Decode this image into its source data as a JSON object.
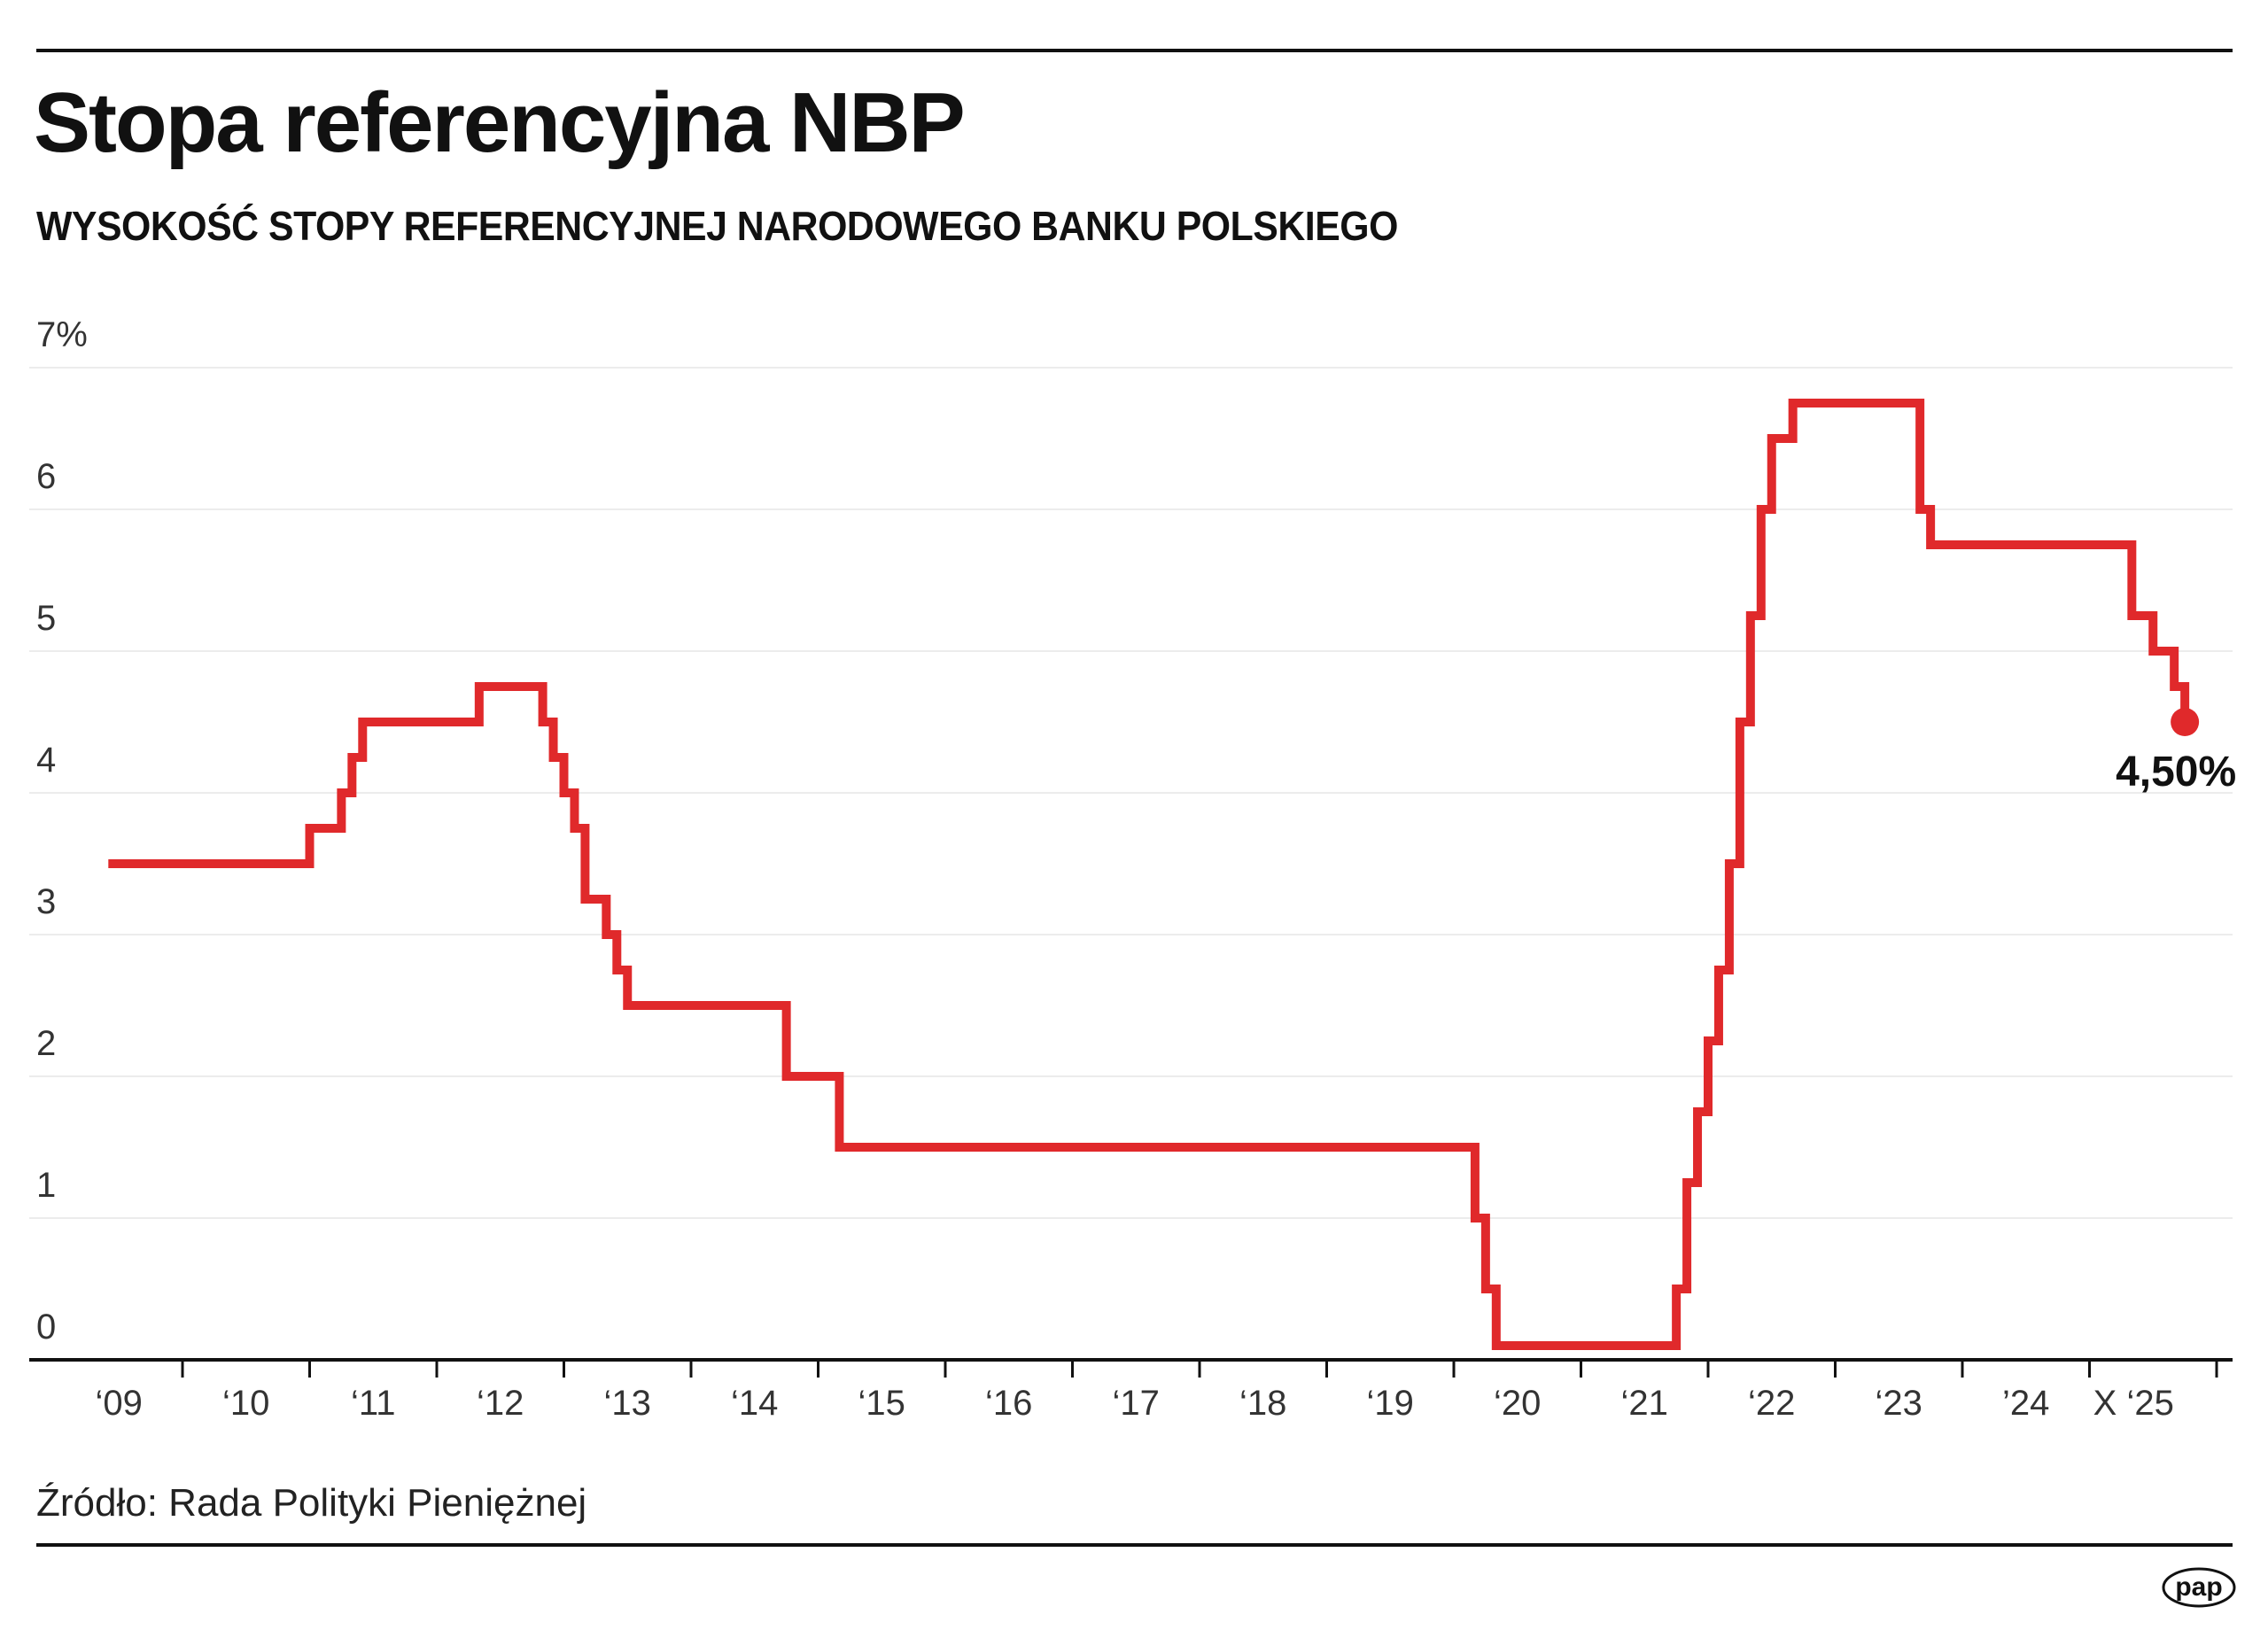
{
  "header": {
    "title": "Stopa referencyjna NBP",
    "subtitle": "WYSOKOŚĆ STOPY REFERENCYJNEJ NARODOWEGO BANKU POLSKIEGO"
  },
  "footer": {
    "source": "Źródło: Rada Polityki Pieniężnej",
    "logo_text": "pap"
  },
  "chart_data": {
    "type": "line",
    "step": true,
    "title": "Stopa referencyjna NBP",
    "subtitle": "WYSOKOŚĆ STOPY REFERENCYJNEJ NARODOWEGO BANKU POLSKIEGO",
    "xlabel": "",
    "ylabel": "",
    "ylim": [
      0,
      7
    ],
    "xlim": [
      "2009-01",
      "2026-01"
    ],
    "y_ticks": [
      0,
      1,
      2,
      3,
      4,
      5,
      6,
      7
    ],
    "y_tick_labels": [
      "0",
      "1",
      "2",
      "3",
      "4",
      "5",
      "6",
      "7%"
    ],
    "x_tick_labels": [
      "‘09",
      "‘10",
      "‘11",
      "‘12",
      "‘13",
      "‘14",
      "‘15",
      "‘16",
      "‘17",
      "‘18",
      "‘19",
      "‘20",
      "‘21",
      "‘22",
      "‘23",
      "’24",
      "X ‘25"
    ],
    "grid": true,
    "line_color": "#e0292b",
    "series": [
      {
        "points": [
          [
            "2009-06",
            3.5
          ],
          [
            "2011-01",
            3.75
          ],
          [
            "2011-04",
            4.0
          ],
          [
            "2011-05",
            4.25
          ],
          [
            "2011-06",
            4.5
          ],
          [
            "2012-05",
            4.75
          ],
          [
            "2012-11",
            4.5
          ],
          [
            "2012-12",
            4.25
          ],
          [
            "2013-01",
            4.0
          ],
          [
            "2013-02",
            3.75
          ],
          [
            "2013-03",
            3.25
          ],
          [
            "2013-05",
            3.0
          ],
          [
            "2013-06",
            2.75
          ],
          [
            "2013-07",
            2.5
          ],
          [
            "2014-10",
            2.0
          ],
          [
            "2015-03",
            1.5
          ],
          [
            "2020-03",
            1.0
          ],
          [
            "2020-04",
            0.5
          ],
          [
            "2020-05",
            0.1
          ],
          [
            "2021-10",
            0.5
          ],
          [
            "2021-11",
            1.25
          ],
          [
            "2021-12",
            1.75
          ],
          [
            "2022-01",
            2.25
          ],
          [
            "2022-02",
            2.75
          ],
          [
            "2022-03",
            3.5
          ],
          [
            "2022-04",
            4.5
          ],
          [
            "2022-05",
            5.25
          ],
          [
            "2022-06",
            6.0
          ],
          [
            "2022-07",
            6.5
          ],
          [
            "2022-09",
            6.75
          ],
          [
            "2023-09",
            6.0
          ],
          [
            "2023-10",
            5.75
          ],
          [
            "2025-05",
            5.25
          ],
          [
            "2025-07",
            5.0
          ],
          [
            "2025-09",
            4.75
          ],
          [
            "2025-10",
            4.5
          ]
        ]
      }
    ],
    "annotation": {
      "label": "4,50%",
      "date": "2025-10",
      "value": 4.5
    }
  }
}
